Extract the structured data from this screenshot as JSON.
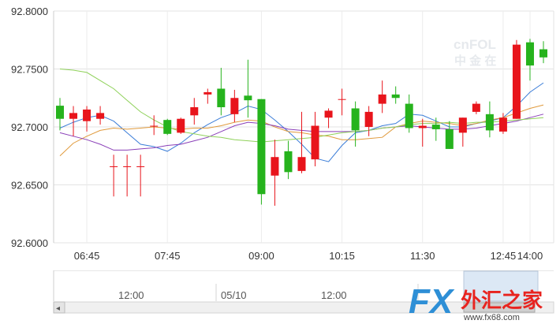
{
  "chart_data": {
    "type": "candlestick",
    "ylim": [
      92.6,
      92.8
    ],
    "y_ticks": [
      "92.8000",
      "92.7500",
      "92.7000",
      "92.6500",
      "92.6000"
    ],
    "y_tick_values": [
      92.8,
      92.75,
      92.7,
      92.65,
      92.6
    ],
    "x_ticks": [
      "06:45",
      "07:45",
      "09:00",
      "10:15",
      "11:30",
      "12:45",
      "14:00"
    ],
    "grid": true,
    "colors": {
      "up": "#e8141b",
      "down": "#26b31d",
      "ma1": "#3b7dd8",
      "ma2": "#e09a3c",
      "ma3": "#8a3fb8",
      "ma4": "#8fd15a"
    },
    "candles": [
      {
        "o": 92.7183,
        "h": 92.725,
        "l": 92.697,
        "c": 92.707
      },
      {
        "o": 92.707,
        "h": 92.718,
        "l": 92.692,
        "c": 92.712
      },
      {
        "o": 92.705,
        "h": 92.718,
        "l": 92.696,
        "c": 92.715
      },
      {
        "o": 92.707,
        "h": 92.718,
        "l": 92.702,
        "c": 92.712
      },
      {
        "o": 92.666,
        "h": 92.676,
        "l": 92.64,
        "c": 92.666
      },
      {
        "o": 92.666,
        "h": 92.676,
        "l": 92.64,
        "c": 92.666
      },
      {
        "o": 92.666,
        "h": 92.676,
        "l": 92.64,
        "c": 92.666
      },
      {
        "o": 92.701,
        "h": 92.71,
        "l": 92.693,
        "c": 92.701
      },
      {
        "o": 92.706,
        "h": 92.707,
        "l": 92.693,
        "c": 92.694
      },
      {
        "o": 92.695,
        "h": 92.708,
        "l": 92.694,
        "c": 92.707
      },
      {
        "o": 92.71,
        "h": 92.725,
        "l": 92.702,
        "c": 92.717
      },
      {
        "o": 92.728,
        "h": 92.733,
        "l": 92.72,
        "c": 92.73
      },
      {
        "o": 92.733,
        "h": 92.751,
        "l": 92.71,
        "c": 92.717
      },
      {
        "o": 92.711,
        "h": 92.732,
        "l": 92.704,
        "c": 92.725
      },
      {
        "o": 92.727,
        "h": 92.758,
        "l": 92.708,
        "c": 92.723
      },
      {
        "o": 92.724,
        "h": 92.724,
        "l": 92.633,
        "c": 92.642
      },
      {
        "o": 92.658,
        "h": 92.689,
        "l": 92.632,
        "c": 92.674
      },
      {
        "o": 92.679,
        "h": 92.688,
        "l": 92.655,
        "c": 92.661
      },
      {
        "o": 92.662,
        "h": 92.713,
        "l": 92.66,
        "c": 92.674
      },
      {
        "o": 92.672,
        "h": 92.713,
        "l": 92.666,
        "c": 92.701
      },
      {
        "o": 92.708,
        "h": 92.716,
        "l": 92.699,
        "c": 92.714
      },
      {
        "o": 92.724,
        "h": 92.733,
        "l": 92.71,
        "c": 92.724
      },
      {
        "o": 92.716,
        "h": 92.722,
        "l": 92.683,
        "c": 92.697
      },
      {
        "o": 92.7,
        "h": 92.718,
        "l": 92.692,
        "c": 92.713
      },
      {
        "o": 92.72,
        "h": 92.74,
        "l": 92.712,
        "c": 92.728
      },
      {
        "o": 92.728,
        "h": 92.735,
        "l": 92.72,
        "c": 92.725
      },
      {
        "o": 92.72,
        "h": 92.728,
        "l": 92.695,
        "c": 92.699
      },
      {
        "o": 92.699,
        "h": 92.707,
        "l": 92.683,
        "c": 92.701
      },
      {
        "o": 92.702,
        "h": 92.708,
        "l": 92.688,
        "c": 92.698
      },
      {
        "o": 92.698,
        "h": 92.705,
        "l": 92.681,
        "c": 92.681
      },
      {
        "o": 92.695,
        "h": 92.708,
        "l": 92.683,
        "c": 92.708
      },
      {
        "o": 92.713,
        "h": 92.722,
        "l": 92.711,
        "c": 92.72
      },
      {
        "o": 92.711,
        "h": 92.722,
        "l": 92.691,
        "c": 92.697
      },
      {
        "o": 92.696,
        "h": 92.712,
        "l": 92.694,
        "c": 92.708
      },
      {
        "o": 92.707,
        "h": 92.775,
        "l": 92.707,
        "c": 92.771
      },
      {
        "o": 92.773,
        "h": 92.776,
        "l": 92.74,
        "c": 92.753
      },
      {
        "o": 92.767,
        "h": 92.774,
        "l": 92.755,
        "c": 92.76
      }
    ],
    "ma_lines": [
      {
        "color": "#3b7dd8",
        "values": [
          92.699,
          92.704,
          92.708,
          92.71,
          92.705,
          92.695,
          92.685,
          92.683,
          92.679,
          92.686,
          92.695,
          92.702,
          92.708,
          92.712,
          92.718,
          92.715,
          92.706,
          92.696,
          92.685,
          92.673,
          92.67,
          92.684,
          92.695,
          92.697,
          92.701,
          92.703,
          92.711,
          92.71,
          92.705,
          92.7,
          92.7,
          92.703,
          92.705,
          92.708,
          92.718,
          92.73,
          92.738
        ]
      },
      {
        "color": "#e09a3c",
        "values": [
          92.675,
          92.686,
          92.692,
          92.697,
          92.699,
          92.698,
          92.699,
          92.7,
          92.699,
          92.698,
          92.699,
          92.699,
          92.701,
          92.704,
          92.706,
          92.705,
          92.7,
          92.696,
          92.695,
          92.693,
          92.692,
          92.689,
          92.689,
          92.69,
          92.691,
          92.7,
          92.703,
          92.705,
          92.704,
          92.703,
          92.701,
          92.703,
          92.706,
          92.708,
          92.712,
          92.716,
          92.719
        ]
      },
      {
        "color": "#8a3fb8",
        "values": [
          92.695,
          92.692,
          92.689,
          92.685,
          92.68,
          92.68,
          92.681,
          92.682,
          92.684,
          92.685,
          92.688,
          92.691,
          92.696,
          92.701,
          92.704,
          92.703,
          92.701,
          92.698,
          92.697,
          92.696,
          92.696,
          92.696,
          92.696,
          92.697,
          92.699,
          92.7,
          92.701,
          92.7,
          92.699,
          92.698,
          92.698,
          92.699,
          92.701,
          92.703,
          92.705,
          92.708,
          92.711
        ]
      },
      {
        "color": "#8fd15a",
        "values": [
          92.75,
          92.749,
          92.747,
          92.74,
          92.733,
          92.723,
          92.713,
          92.706,
          92.7,
          92.696,
          92.694,
          92.692,
          92.691,
          92.689,
          92.688,
          92.687,
          92.688,
          92.689,
          92.69,
          92.691,
          92.693,
          92.695,
          92.696,
          92.697,
          92.699,
          92.7,
          92.702,
          92.703,
          92.703,
          92.704,
          92.703,
          92.704,
          92.704,
          92.705,
          92.706,
          92.707,
          92.708
        ]
      }
    ]
  },
  "navigator": {
    "labels": [
      "12:00",
      "05/10",
      "12:00"
    ],
    "scroll_left_icon": "◂",
    "scroll_right_icon": "▸"
  },
  "watermarks": {
    "cnfol_text": "cnFOL",
    "cnfol_sub": "中 金 在",
    "fx_logo": "FX",
    "fx_cn": "外汇之家",
    "fx_url": "www.fx68.com"
  }
}
